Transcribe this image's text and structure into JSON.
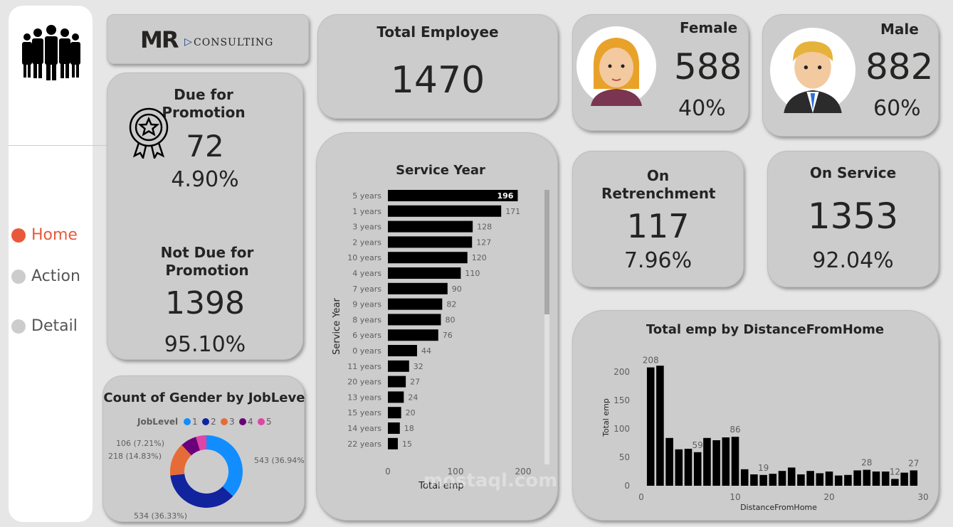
{
  "nav": {
    "items": [
      {
        "label": "Home",
        "active": true
      },
      {
        "label": "Action"
      },
      {
        "label": "Detail"
      }
    ],
    "active_color": "#e8593c"
  },
  "logo": {
    "brand": "MR",
    "sub": "CONSULTING"
  },
  "total_employee": {
    "title": "Total Employee",
    "value": "1470"
  },
  "female": {
    "title": "Female",
    "value": "588",
    "pct": "40%"
  },
  "male": {
    "title": "Male",
    "value": "882",
    "pct": "60%"
  },
  "promotion": {
    "due_title": "Due for Promotion",
    "due_value": "72",
    "due_pct": "4.90%",
    "not_title": "Not Due for Promotion",
    "not_value": "1398",
    "not_pct": "95.10%"
  },
  "retrenchment": {
    "title": "On Retrenchment",
    "value": "117",
    "pct": "7.96%"
  },
  "on_service": {
    "title": "On Service",
    "value": "1353",
    "pct": "92.04%"
  },
  "watermark": "mostaql.com",
  "chart_data": [
    {
      "type": "bar",
      "orientation": "horizontal",
      "title": "Service Year",
      "xlabel": "Total emp",
      "ylabel": "Service Year",
      "xlim": [
        0,
        200
      ],
      "xticks": [
        "0",
        "100",
        "200"
      ],
      "categories": [
        "5 years",
        "1 years",
        "3 years",
        "2 years",
        "10 years",
        "4 years",
        "7 years",
        "9 years",
        "8 years",
        "6 years",
        "0 years",
        "11 years",
        "20 years",
        "13 years",
        "15 years",
        "14 years",
        "22 years"
      ],
      "values": [
        196,
        171,
        128,
        127,
        120,
        110,
        90,
        82,
        80,
        76,
        44,
        32,
        27,
        24,
        20,
        18,
        15
      ]
    },
    {
      "type": "bar",
      "title": "Total emp by DistanceFromHome",
      "xlabel": "DistanceFromHome",
      "ylabel": "Total emp",
      "xlim": [
        0,
        30
      ],
      "ylim": [
        0,
        220
      ],
      "xticks": [
        "0",
        "10",
        "20",
        "30"
      ],
      "yticks": [
        "0",
        "50",
        "100",
        "150",
        "200"
      ],
      "x": [
        1,
        2,
        3,
        4,
        5,
        6,
        7,
        8,
        9,
        10,
        11,
        12,
        13,
        14,
        15,
        16,
        17,
        18,
        19,
        20,
        21,
        22,
        23,
        24,
        25,
        26,
        27,
        28,
        29
      ],
      "values": [
        208,
        211,
        84,
        64,
        65,
        59,
        84,
        80,
        85,
        86,
        29,
        20,
        19,
        21,
        26,
        32,
        20,
        26,
        22,
        25,
        18,
        19,
        27,
        28,
        25,
        25,
        12,
        23,
        27
      ],
      "labeled": {
        "1": "208",
        "6": "59",
        "10": "86",
        "13": "19",
        "24": "28",
        "27": "12",
        "29": "27"
      }
    },
    {
      "type": "pie",
      "donut": true,
      "title": "Count of Gender by JobLevel",
      "legend_title": "JobLevel",
      "legend": "top",
      "categories": [
        "1",
        "2",
        "3",
        "4",
        "5"
      ],
      "values": [
        543,
        534,
        218,
        106,
        69
      ],
      "colors": [
        "#118dff",
        "#12239e",
        "#e66c37",
        "#6b007b",
        "#e044a7"
      ],
      "labels": [
        "543 (36.94%)",
        "534 (36.33%)",
        "218 (14.83%)",
        "106 (7.21%)",
        ""
      ]
    }
  ]
}
